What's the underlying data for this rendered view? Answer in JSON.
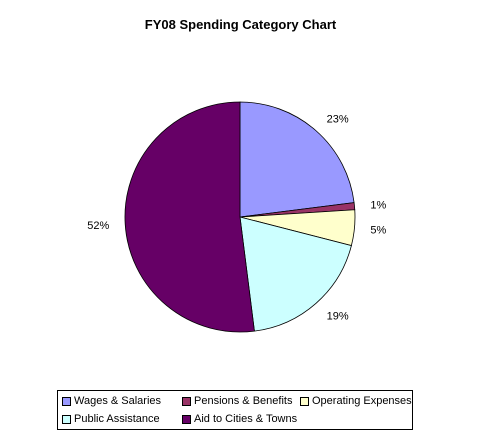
{
  "chart_data": {
    "type": "pie",
    "title": "FY08 Spending Category Chart",
    "slices": [
      {
        "label": "Wages & Salaries",
        "value": 23,
        "display": "23%",
        "color": "#9999ff"
      },
      {
        "label": "Pensions & Benefits",
        "value": 1,
        "display": "1%",
        "color": "#993366"
      },
      {
        "label": "Operating Expenses",
        "value": 5,
        "display": "5%",
        "color": "#ffffcc"
      },
      {
        "label": "Public Assistance",
        "value": 19,
        "display": "19%",
        "color": "#ccffff"
      },
      {
        "label": "Aid to Cities & Towns",
        "value": 52,
        "display": "52%",
        "color": "#660066"
      }
    ],
    "legend_position": "bottom"
  }
}
